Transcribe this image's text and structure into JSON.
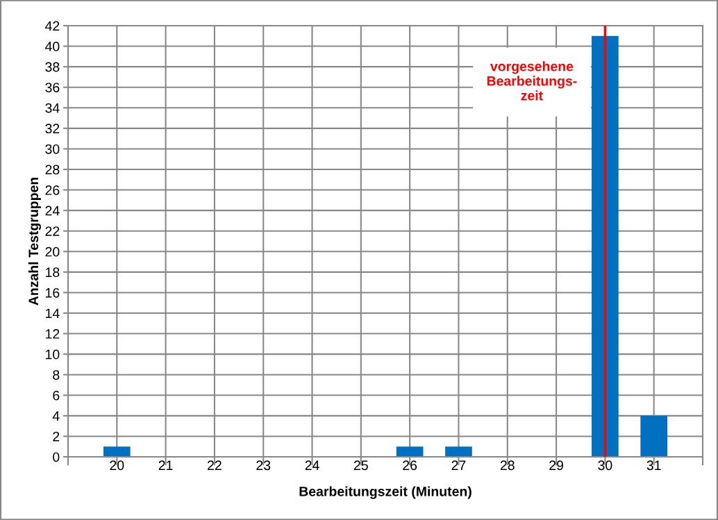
{
  "chart_data": {
    "type": "bar",
    "xlabel": "Bearbeitungszeit (Minuten)",
    "ylabel": "Anzahl Testgruppen",
    "categories": [
      "20",
      "21",
      "22",
      "23",
      "24",
      "25",
      "26",
      "27",
      "28",
      "29",
      "30",
      "31"
    ],
    "values": [
      1,
      0,
      0,
      0,
      0,
      0,
      1,
      1,
      0,
      0,
      41,
      4
    ],
    "color": "#0070c0",
    "ylim": [
      0,
      42
    ],
    "yticks": [
      0,
      2,
      4,
      6,
      8,
      10,
      12,
      14,
      16,
      18,
      20,
      22,
      24,
      26,
      28,
      30,
      32,
      34,
      36,
      38,
      40,
      42
    ],
    "grid": true,
    "ref_lines": [
      {
        "axis": "x",
        "value": "30",
        "label": "vorgesehene\nBearbeitungs-\nzeit",
        "color": "#ff0000",
        "line_style": "solid"
      }
    ]
  }
}
